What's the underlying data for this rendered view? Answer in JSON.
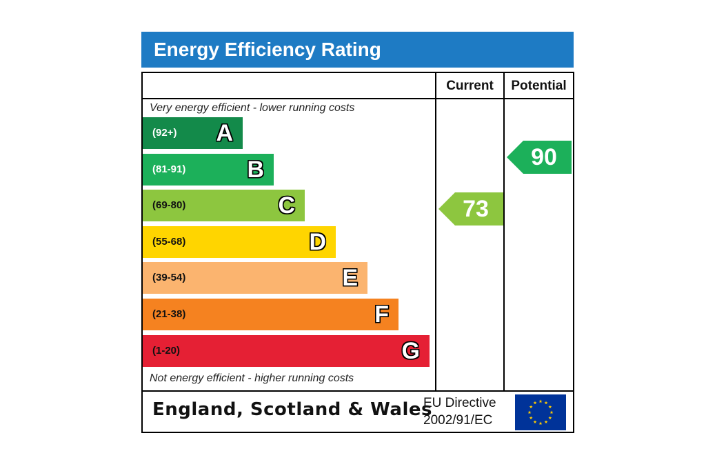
{
  "title": "Energy Efficiency Rating",
  "columns": {
    "current": "Current",
    "potential": "Potential"
  },
  "notes": {
    "top": "Very energy efficient - lower running costs",
    "bottom": "Not energy efficient - higher running costs"
  },
  "bands": [
    {
      "range": "(92+)",
      "letter": "A",
      "color": "#138a4a",
      "range_color": "#ffffff"
    },
    {
      "range": "(81-91)",
      "letter": "B",
      "color": "#1cb05a",
      "range_color": "#ffffff"
    },
    {
      "range": "(69-80)",
      "letter": "C",
      "color": "#8dc63f",
      "range_color": "#111111"
    },
    {
      "range": "(55-68)",
      "letter": "D",
      "color": "#ffd500",
      "range_color": "#111111"
    },
    {
      "range": "(39-54)",
      "letter": "E",
      "color": "#fbb46f",
      "range_color": "#111111"
    },
    {
      "range": "(21-38)",
      "letter": "F",
      "color": "#f58220",
      "range_color": "#111111"
    },
    {
      "range": "(1-20)",
      "letter": "G",
      "color": "#e52034",
      "range_color": "#111111"
    }
  ],
  "ratings": {
    "current": {
      "value": "73",
      "color": "#8dc63f"
    },
    "potential": {
      "value": "90",
      "color": "#1cb05a"
    }
  },
  "footer": {
    "country": "England, Scotland & Wales",
    "directive_line1": "EU Directive",
    "directive_line2": "2002/91/EC"
  },
  "colors": {
    "title_bar": "#1e7bc4",
    "eu_flag": "#003399",
    "eu_stars": "#ffcc00"
  }
}
